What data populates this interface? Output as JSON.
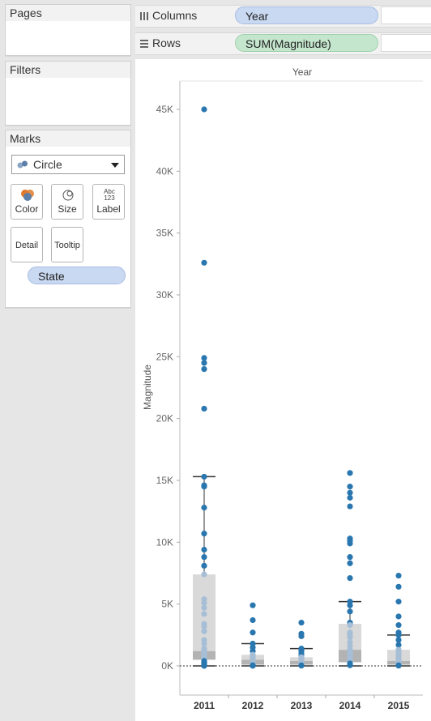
{
  "sidebar": {
    "pages": {
      "title": "Pages"
    },
    "filters": {
      "title": "Filters"
    },
    "marks": {
      "title": "Marks",
      "mark_type": "Circle",
      "buttons": [
        {
          "label": "Color",
          "icon": "color-icon"
        },
        {
          "label": "Size",
          "icon": "size-icon"
        },
        {
          "label": "Label",
          "icon": "label-icon",
          "icon_text_top": "Abc",
          "icon_text_bottom": "123"
        },
        {
          "label": "Detail",
          "icon": "detail-icon"
        },
        {
          "label": "Tooltip",
          "icon": "tooltip-icon"
        }
      ],
      "fields": [
        {
          "label": "State"
        }
      ]
    }
  },
  "shelves": {
    "columns": {
      "label": "Columns",
      "pill": "Year"
    },
    "rows": {
      "label": "Rows",
      "pill": "SUM(Magnitude)"
    }
  },
  "colors": {
    "point": "#2a77b0",
    "point_light": "#a6bfd6",
    "box_outer": "#d9d9d9",
    "box_inner": "#b3b3b3",
    "whisker": "#333333",
    "pill_blue": "#c9d9f2",
    "pill_green": "#c4e6cd"
  },
  "chart_data": {
    "type": "scatter",
    "subtype": "strip-with-boxplot",
    "column_header": "Year",
    "ylabel": "Magnitude",
    "categories": [
      "2011",
      "2012",
      "2013",
      "2014",
      "2015"
    ],
    "ylim": [
      -2500,
      47000
    ],
    "yticks": [
      0,
      5000,
      10000,
      15000,
      20000,
      25000,
      30000,
      35000,
      40000,
      45000
    ],
    "ytick_labels": [
      "0K",
      "5K",
      "10K",
      "15K",
      "20K",
      "25K",
      "30K",
      "35K",
      "40K",
      "45K"
    ],
    "reference_line": 0,
    "grid": false,
    "series": [
      {
        "category": "2011",
        "values": [
          45000,
          32600,
          24900,
          24500,
          24000,
          20800,
          15300,
          14600,
          14500,
          12800,
          10700,
          9400,
          8800,
          8100,
          7400,
          5400,
          5100,
          4700,
          4200,
          3400,
          3200,
          2800,
          2100,
          1800,
          1400,
          1200,
          1000,
          900,
          800,
          700,
          600,
          500,
          400,
          300,
          250,
          200,
          150,
          100,
          50,
          0
        ]
      },
      {
        "category": "2012",
        "values": [
          4900,
          3700,
          2700,
          1800,
          1500,
          1200,
          900,
          800,
          700,
          600,
          500,
          400,
          300,
          250,
          200,
          150,
          100,
          50,
          30,
          10
        ]
      },
      {
        "category": "2013",
        "values": [
          3500,
          2600,
          2400,
          1400,
          1300,
          1200,
          1000,
          800,
          700,
          600,
          500,
          400,
          300,
          200,
          150,
          100,
          50,
          20
        ]
      },
      {
        "category": "2014",
        "values": [
          15600,
          14500,
          14000,
          13600,
          12900,
          10300,
          10100,
          9900,
          8800,
          8300,
          7100,
          5200,
          4900,
          4400,
          3500,
          3300,
          2700,
          2500,
          2300,
          1900,
          1600,
          1300,
          1100,
          1000,
          800,
          700,
          600,
          500,
          400,
          300,
          200,
          100,
          50
        ]
      },
      {
        "category": "2015",
        "values": [
          7300,
          6400,
          5200,
          4000,
          3300,
          2700,
          2500,
          2100,
          1700,
          1300,
          1100,
          900,
          800,
          600,
          500,
          400,
          300,
          200,
          150,
          100,
          50,
          20
        ]
      }
    ],
    "boxplots": [
      {
        "category": "2011",
        "whisker_low": 0,
        "q1": 500,
        "median": 1200,
        "q3": 7400,
        "whisker_high": 15300
      },
      {
        "category": "2012",
        "whisker_low": 0,
        "q1": 100,
        "median": 500,
        "q3": 900,
        "whisker_high": 1800
      },
      {
        "category": "2013",
        "whisker_low": 0,
        "q1": 100,
        "median": 400,
        "q3": 700,
        "whisker_high": 1400
      },
      {
        "category": "2014",
        "whisker_low": 0,
        "q1": 300,
        "median": 1300,
        "q3": 3400,
        "whisker_high": 5200
      },
      {
        "category": "2015",
        "whisker_low": 0,
        "q1": 100,
        "median": 400,
        "q3": 1300,
        "whisker_high": 2500
      }
    ]
  }
}
